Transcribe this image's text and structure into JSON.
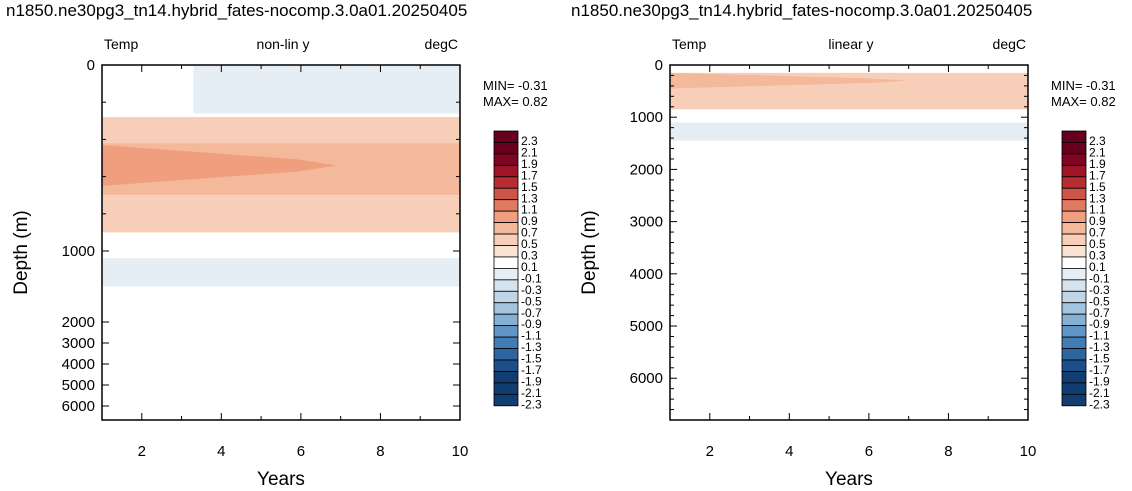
{
  "colors": {
    "levels": [
      "#ffffff",
      "#fbe3d4",
      "#f7cfb8",
      "#f4b89a",
      "#ef9f7e",
      "#e07a62",
      "#cc5448",
      "#b82d32",
      "#9f1427",
      "#7e0623",
      "#67001f"
    ],
    "negative": [
      "#e6eef5",
      "#d5e4ef",
      "#bfd6e8",
      "#a2c4de",
      "#83b0d3",
      "#6096c6",
      "#437cb5",
      "#2e64a0",
      "#1d4e89",
      "#123d71",
      "#08305c"
    ]
  },
  "chart_data": [
    {
      "type": "heatmap",
      "title": "n1850.ne30pg3_tn14.hybrid_fates-nocomp.3.0a01.20250405",
      "left_label": "Temp",
      "center_label": "non-lin y",
      "right_label": "degC",
      "xlabel": "Years",
      "ylabel": "Depth (m)",
      "xlim": [
        1,
        10
      ],
      "ylim": [
        6500,
        0
      ],
      "y_scale": "non-linear",
      "x_ticks": [
        "2",
        "4",
        "6",
        "8",
        "10"
      ],
      "y_ticks": [
        "0",
        "1000",
        "2000",
        "3000",
        "4000",
        "5000",
        "6000"
      ],
      "stats": {
        "min": "MIN= -0.31",
        "max": "MAX=  0.82"
      },
      "bands": [
        {
          "depth": [
            0,
            140
          ],
          "x": [
            1.3,
            1.5
          ],
          "value": 0.05
        },
        {
          "depth": [
            0,
            260
          ],
          "x": [
            3.3,
            10
          ],
          "value": -0.12
        },
        {
          "depth": [
            280,
            420
          ],
          "x": [
            1,
            10
          ],
          "value": 0.45
        },
        {
          "depth": [
            420,
            700
          ],
          "x": [
            1,
            10
          ],
          "value": 0.65
        },
        {
          "depth": [
            430,
            650
          ],
          "x": [
            1,
            6.9
          ],
          "value": 0.82
        },
        {
          "depth": [
            700,
            900
          ],
          "x": [
            1,
            10
          ],
          "value": 0.4
        },
        {
          "depth": [
            1100,
            1500
          ],
          "x": [
            1,
            10
          ],
          "value": -0.12
        },
        {
          "depth": [
            1500,
            1600
          ],
          "x": [
            1,
            10
          ],
          "value": -0.05
        }
      ]
    },
    {
      "type": "heatmap",
      "title": "n1850.ne30pg3_tn14.hybrid_fates-nocomp.3.0a01.20250405",
      "left_label": "Temp",
      "center_label": "linear y",
      "right_label": "degC",
      "xlabel": "Years",
      "ylabel": "Depth (m)",
      "xlim": [
        1,
        10
      ],
      "ylim": [
        6800,
        0
      ],
      "y_scale": "linear",
      "x_ticks": [
        "2",
        "4",
        "6",
        "8",
        "10"
      ],
      "y_ticks": [
        "0",
        "1000",
        "2000",
        "3000",
        "4000",
        "5000",
        "6000"
      ],
      "stats": {
        "min": "MIN= -0.31",
        "max": "MAX=  0.82"
      },
      "bands": [
        {
          "depth": [
            150,
            850
          ],
          "x": [
            1,
            10
          ],
          "value": 0.45
        },
        {
          "depth": [
            150,
            450
          ],
          "x": [
            1,
            7.0
          ],
          "value": 0.7
        },
        {
          "depth": [
            1100,
            1450
          ],
          "x": [
            1,
            10
          ],
          "value": -0.12
        },
        {
          "depth": [
            1450,
            1600
          ],
          "x": [
            1,
            10
          ],
          "value": -0.05
        }
      ]
    }
  ],
  "colorbar": {
    "labels": [
      "2.3",
      "2.1",
      "1.9",
      "1.7",
      "1.5",
      "1.3",
      "1.1",
      "0.9",
      "0.7",
      "0.5",
      "0.3",
      "0.1",
      "-0.1",
      "-0.3",
      "-0.5",
      "-0.7",
      "-0.9",
      "-1.1",
      "-1.3",
      "-1.5",
      "-1.7",
      "-1.9",
      "-2.1",
      "-2.3"
    ]
  }
}
